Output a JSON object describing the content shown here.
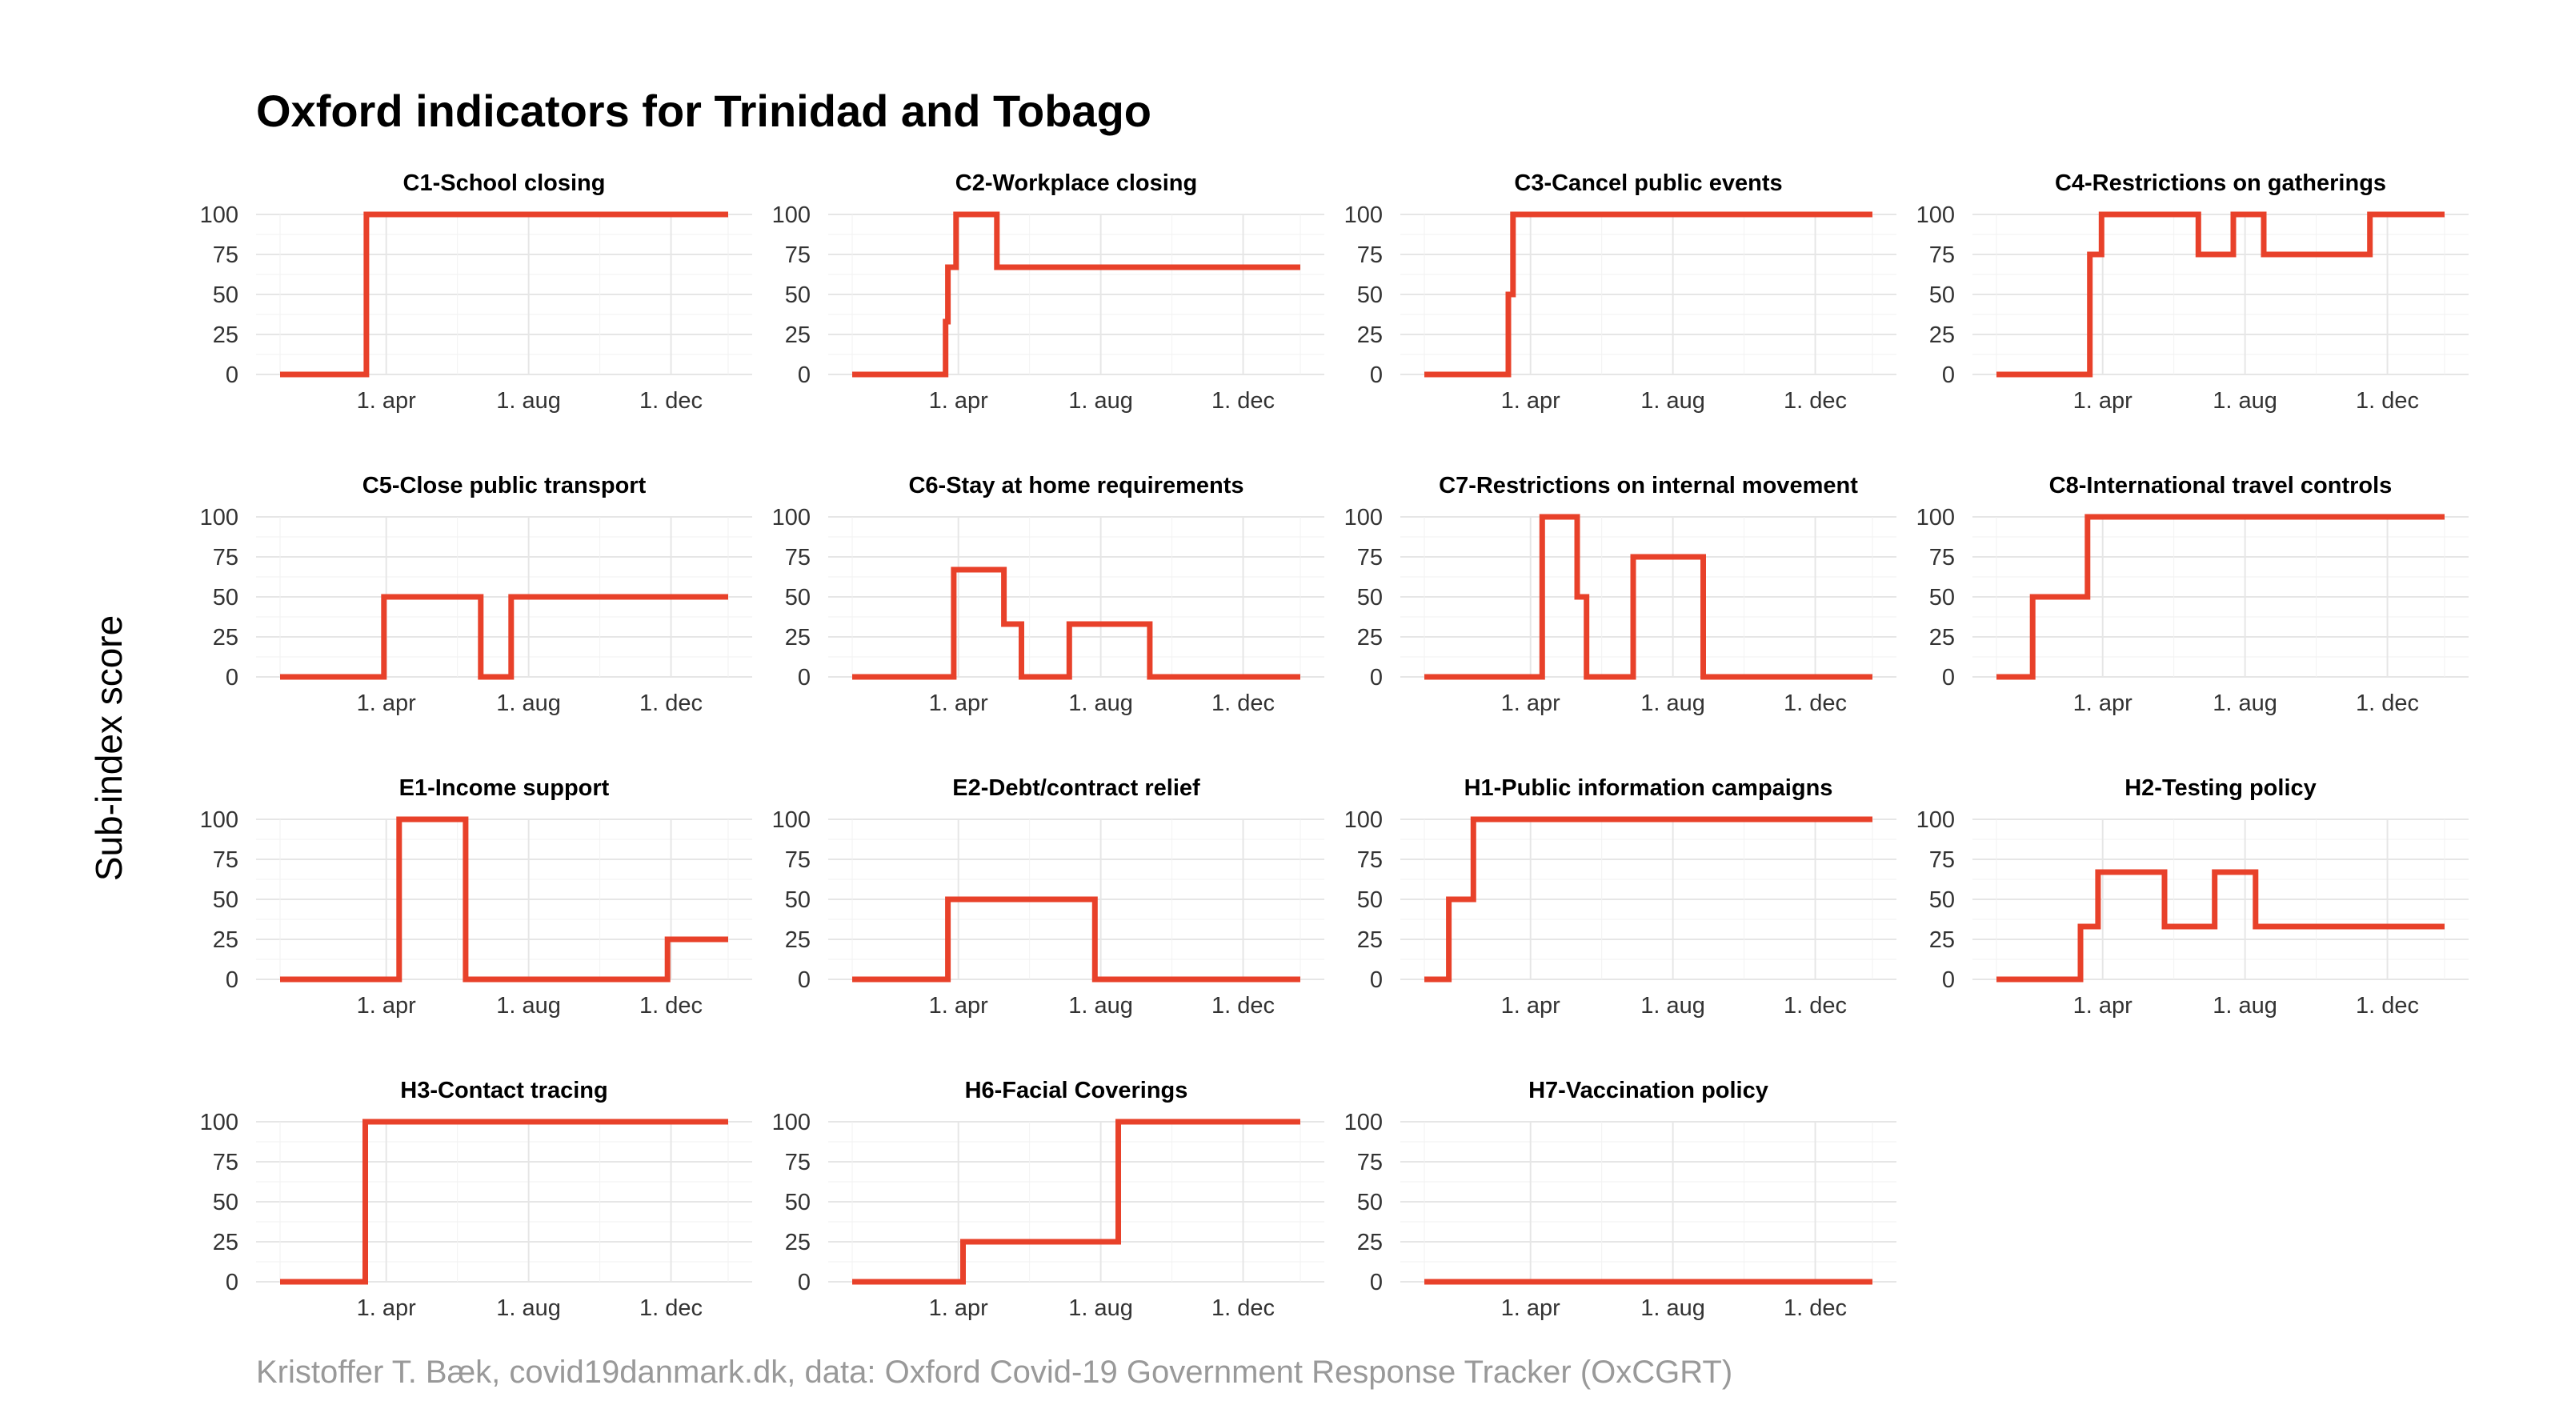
{
  "title": "Oxford indicators for Trinidad and Tobago",
  "ylabel": "Sub-index score",
  "caption": "Kristoffer T. Bæk, covid19danmark.dk, data: Oxford Covid-19 Government Response Tracker (OxCGRT)",
  "colors": {
    "line": "#e8412a",
    "grid": "#e6e6e6",
    "text": "#333333",
    "caption": "#999999"
  },
  "chart_data": {
    "type": "line",
    "layout": "small-multiples",
    "x_start": "2020-01-01",
    "x_end": "2021-01-19",
    "x_ticks": [
      {
        "label": "1. apr",
        "date": "2020-04-01"
      },
      {
        "label": "1. aug",
        "date": "2020-08-01"
      },
      {
        "label": "1. dec",
        "date": "2020-12-01"
      }
    ],
    "y_ticks": [
      0,
      25,
      50,
      75,
      100
    ],
    "ylim": [
      0,
      100
    ],
    "panels": [
      {
        "name": "C1-School closing",
        "points": [
          [
            "2020-01-01",
            0
          ],
          [
            "2020-03-15",
            0
          ],
          [
            "2020-03-15",
            100
          ],
          [
            "2021-01-19",
            100
          ]
        ]
      },
      {
        "name": "C2-Workplace closing",
        "points": [
          [
            "2020-01-01",
            0
          ],
          [
            "2020-03-21",
            0
          ],
          [
            "2020-03-21",
            33
          ],
          [
            "2020-03-23",
            33
          ],
          [
            "2020-03-23",
            67
          ],
          [
            "2020-03-30",
            67
          ],
          [
            "2020-03-30",
            100
          ],
          [
            "2020-05-04",
            100
          ],
          [
            "2020-05-04",
            67
          ],
          [
            "2021-01-19",
            67
          ]
        ]
      },
      {
        "name": "C3-Cancel public events",
        "points": [
          [
            "2020-01-01",
            0
          ],
          [
            "2020-03-13",
            0
          ],
          [
            "2020-03-13",
            50
          ],
          [
            "2020-03-17",
            50
          ],
          [
            "2020-03-17",
            100
          ],
          [
            "2021-01-19",
            100
          ]
        ]
      },
      {
        "name": "C4-Restrictions on gatherings",
        "points": [
          [
            "2020-01-01",
            0
          ],
          [
            "2020-03-21",
            0
          ],
          [
            "2020-03-21",
            75
          ],
          [
            "2020-03-31",
            75
          ],
          [
            "2020-03-31",
            100
          ],
          [
            "2020-06-22",
            100
          ],
          [
            "2020-06-22",
            75
          ],
          [
            "2020-07-22",
            75
          ],
          [
            "2020-07-22",
            100
          ],
          [
            "2020-08-17",
            100
          ],
          [
            "2020-08-17",
            75
          ],
          [
            "2020-11-16",
            75
          ],
          [
            "2020-11-16",
            100
          ],
          [
            "2021-01-19",
            100
          ]
        ]
      },
      {
        "name": "C5-Close public transport",
        "points": [
          [
            "2020-01-01",
            0
          ],
          [
            "2020-03-30",
            0
          ],
          [
            "2020-03-30",
            50
          ],
          [
            "2020-06-21",
            50
          ],
          [
            "2020-06-21",
            0
          ],
          [
            "2020-07-17",
            0
          ],
          [
            "2020-07-17",
            50
          ],
          [
            "2021-01-19",
            50
          ]
        ]
      },
      {
        "name": "C6-Stay at home requirements",
        "points": [
          [
            "2020-01-01",
            0
          ],
          [
            "2020-03-28",
            0
          ],
          [
            "2020-03-28",
            67
          ],
          [
            "2020-05-10",
            67
          ],
          [
            "2020-05-10",
            33
          ],
          [
            "2020-05-25",
            33
          ],
          [
            "2020-05-25",
            0
          ],
          [
            "2020-07-05",
            0
          ],
          [
            "2020-07-05",
            33
          ],
          [
            "2020-09-12",
            33
          ],
          [
            "2020-09-12",
            0
          ],
          [
            "2021-01-19",
            0
          ]
        ]
      },
      {
        "name": "C7-Restrictions on internal movement",
        "points": [
          [
            "2020-01-01",
            0
          ],
          [
            "2020-04-11",
            0
          ],
          [
            "2020-04-11",
            100
          ],
          [
            "2020-05-11",
            100
          ],
          [
            "2020-05-11",
            50
          ],
          [
            "2020-05-19",
            50
          ],
          [
            "2020-05-19",
            0
          ],
          [
            "2020-06-28",
            0
          ],
          [
            "2020-06-28",
            75
          ],
          [
            "2020-08-27",
            75
          ],
          [
            "2020-08-27",
            0
          ],
          [
            "2021-01-19",
            0
          ]
        ]
      },
      {
        "name": "C8-International travel controls",
        "points": [
          [
            "2020-01-01",
            0
          ],
          [
            "2020-02-01",
            0
          ],
          [
            "2020-02-01",
            50
          ],
          [
            "2020-03-19",
            50
          ],
          [
            "2020-03-19",
            100
          ],
          [
            "2021-01-19",
            100
          ]
        ]
      },
      {
        "name": "E1-Income support",
        "points": [
          [
            "2020-01-01",
            0
          ],
          [
            "2020-04-12",
            0
          ],
          [
            "2020-04-12",
            100
          ],
          [
            "2020-06-08",
            100
          ],
          [
            "2020-06-08",
            0
          ],
          [
            "2020-11-28",
            0
          ],
          [
            "2020-11-28",
            25
          ],
          [
            "2021-01-19",
            25
          ]
        ]
      },
      {
        "name": "E2-Debt/contract relief",
        "points": [
          [
            "2020-01-01",
            0
          ],
          [
            "2020-03-23",
            0
          ],
          [
            "2020-03-23",
            50
          ],
          [
            "2020-07-27",
            50
          ],
          [
            "2020-07-27",
            0
          ],
          [
            "2021-01-19",
            0
          ]
        ]
      },
      {
        "name": "H1-Public information campaigns",
        "points": [
          [
            "2020-01-01",
            0
          ],
          [
            "2020-01-22",
            0
          ],
          [
            "2020-01-22",
            50
          ],
          [
            "2020-02-12",
            50
          ],
          [
            "2020-02-12",
            100
          ],
          [
            "2021-01-19",
            100
          ]
        ]
      },
      {
        "name": "H2-Testing policy",
        "points": [
          [
            "2020-01-01",
            0
          ],
          [
            "2020-03-13",
            0
          ],
          [
            "2020-03-13",
            33
          ],
          [
            "2020-03-28",
            33
          ],
          [
            "2020-03-28",
            67
          ],
          [
            "2020-05-24",
            67
          ],
          [
            "2020-05-24",
            33
          ],
          [
            "2020-07-06",
            33
          ],
          [
            "2020-07-06",
            67
          ],
          [
            "2020-08-10",
            67
          ],
          [
            "2020-08-10",
            33
          ],
          [
            "2021-01-19",
            33
          ]
        ]
      },
      {
        "name": "H3-Contact tracing",
        "points": [
          [
            "2020-01-01",
            0
          ],
          [
            "2020-03-14",
            0
          ],
          [
            "2020-03-14",
            100
          ],
          [
            "2021-01-19",
            100
          ]
        ]
      },
      {
        "name": "H6-Facial Coverings",
        "points": [
          [
            "2020-01-01",
            0
          ],
          [
            "2020-04-05",
            0
          ],
          [
            "2020-04-05",
            25
          ],
          [
            "2020-08-16",
            25
          ],
          [
            "2020-08-16",
            100
          ],
          [
            "2021-01-19",
            100
          ]
        ]
      },
      {
        "name": "H7-Vaccination policy",
        "points": [
          [
            "2020-01-01",
            0
          ],
          [
            "2021-01-19",
            0
          ]
        ]
      }
    ]
  }
}
